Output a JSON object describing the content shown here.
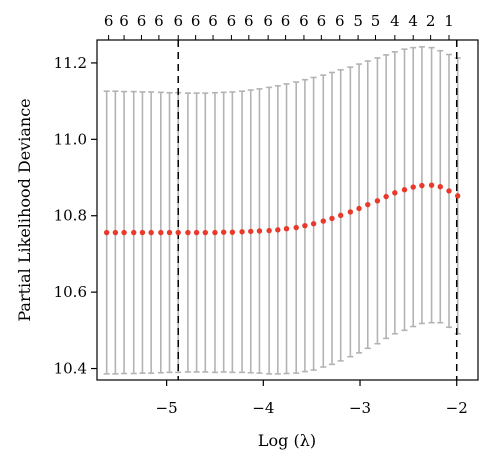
{
  "chart_data": {
    "type": "scatter",
    "xlabel": "Log (λ)",
    "ylabel": "Partial Likelihood Deviance",
    "xlim": [
      -5.72,
      -1.78
    ],
    "ylim": [
      10.37,
      11.26
    ],
    "x_ticks": [
      {
        "value": -5,
        "label": "−5"
      },
      {
        "value": -4,
        "label": "−4"
      },
      {
        "value": -3,
        "label": "−3"
      },
      {
        "value": -2,
        "label": "−2"
      }
    ],
    "y_ticks": [
      {
        "value": 10.4,
        "label": "10.4"
      },
      {
        "value": 10.6,
        "label": "10.6"
      },
      {
        "value": 10.8,
        "label": "10.8"
      },
      {
        "value": 11.0,
        "label": "11.0"
      },
      {
        "value": 11.2,
        "label": "11.2"
      }
    ],
    "top_axis": [
      {
        "x": -5.6,
        "label": "6"
      },
      {
        "x": -5.44,
        "label": "6"
      },
      {
        "x": -5.26,
        "label": "6"
      },
      {
        "x": -5.08,
        "label": "6"
      },
      {
        "x": -4.88,
        "label": "6"
      },
      {
        "x": -4.7,
        "label": "6"
      },
      {
        "x": -4.52,
        "label": "6"
      },
      {
        "x": -4.33,
        "label": "6"
      },
      {
        "x": -4.15,
        "label": "6"
      },
      {
        "x": -3.95,
        "label": "6"
      },
      {
        "x": -3.77,
        "label": "6"
      },
      {
        "x": -3.58,
        "label": "6"
      },
      {
        "x": -3.4,
        "label": "6"
      },
      {
        "x": -3.21,
        "label": "6"
      },
      {
        "x": -3.02,
        "label": "5"
      },
      {
        "x": -2.84,
        "label": "5"
      },
      {
        "x": -2.64,
        "label": "4"
      },
      {
        "x": -2.45,
        "label": "4"
      },
      {
        "x": -2.27,
        "label": "2"
      },
      {
        "x": -2.08,
        "label": "1"
      }
    ],
    "vlines": [
      -4.88,
      -2.0
    ],
    "points_x": [
      -5.62,
      -5.53,
      -5.44,
      -5.34,
      -5.25,
      -5.16,
      -5.06,
      -4.97,
      -4.88,
      -4.78,
      -4.69,
      -4.6,
      -4.5,
      -4.41,
      -4.32,
      -4.22,
      -4.13,
      -4.04,
      -3.94,
      -3.85,
      -3.76,
      -3.66,
      -3.57,
      -3.48,
      -3.38,
      -3.29,
      -3.2,
      -3.1,
      -3.01,
      -2.92,
      -2.82,
      -2.73,
      -2.64,
      -2.54,
      -2.45,
      -2.36,
      -2.26,
      -2.17,
      -2.08,
      -1.99
    ],
    "points_y": [
      10.756,
      10.756,
      10.756,
      10.756,
      10.756,
      10.756,
      10.756,
      10.756,
      10.756,
      10.756,
      10.756,
      10.756,
      10.756,
      10.757,
      10.757,
      10.758,
      10.759,
      10.76,
      10.761,
      10.763,
      10.766,
      10.769,
      10.774,
      10.779,
      10.786,
      10.793,
      10.801,
      10.81,
      10.819,
      10.829,
      10.839,
      10.85,
      10.86,
      10.868,
      10.875,
      10.879,
      10.88,
      10.876,
      10.865,
      10.852
    ],
    "upper": [
      11.126,
      11.126,
      11.125,
      11.125,
      11.124,
      11.124,
      11.123,
      11.122,
      11.122,
      11.121,
      11.121,
      11.121,
      11.122,
      11.123,
      11.124,
      11.126,
      11.129,
      11.132,
      11.136,
      11.14,
      11.145,
      11.15,
      11.156,
      11.162,
      11.168,
      11.175,
      11.182,
      11.189,
      11.197,
      11.205,
      11.213,
      11.221,
      11.229,
      11.236,
      11.24,
      11.242,
      11.24,
      11.232,
      11.222,
      11.213
    ],
    "lower": [
      10.386,
      10.386,
      10.387,
      10.387,
      10.388,
      10.388,
      10.389,
      10.39,
      10.39,
      10.391,
      10.391,
      10.391,
      10.39,
      10.391,
      10.39,
      10.39,
      10.389,
      10.388,
      10.386,
      10.386,
      10.387,
      10.388,
      10.392,
      10.396,
      10.404,
      10.411,
      10.42,
      10.431,
      10.441,
      10.453,
      10.465,
      10.479,
      10.491,
      10.5,
      10.51,
      10.518,
      10.52,
      10.52,
      10.508,
      10.491
    ],
    "point_color": "#e8392b",
    "bar_color": "#b3b3b3",
    "grid": false
  }
}
